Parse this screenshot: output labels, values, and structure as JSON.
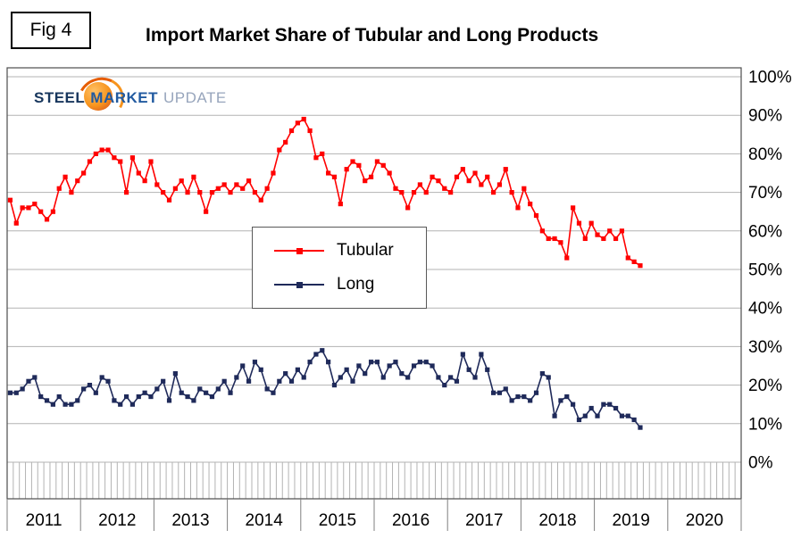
{
  "figure": {
    "fig_label": "Fig 4",
    "title": "Import Market Share of Tubular and Long Products"
  },
  "logo": {
    "part1": "STEEL",
    "part2": "MARKET",
    "part3": "UPDATE",
    "steel_color": "#17365d",
    "market_color": "#215aa0",
    "update_color": "#97a5bc",
    "swirl_color": "#f7941d"
  },
  "legend": {
    "items": [
      {
        "label": "Tubular",
        "color": "#FF0000"
      },
      {
        "label": "Long",
        "color": "#1F2A5A"
      }
    ]
  },
  "chart_data": {
    "type": "line",
    "title": "Import Market Share of Tubular and Long Products",
    "xlabel": "",
    "ylabel": "",
    "ylim": [
      0,
      100
    ],
    "ytick_step": 10,
    "ytick_labels": [
      "0%",
      "10%",
      "20%",
      "30%",
      "40%",
      "50%",
      "60%",
      "70%",
      "80%",
      "90%",
      "100%"
    ],
    "ytick_side": "right",
    "grid": "horizontal",
    "legend_position": "inside-center-left",
    "frequency": "monthly",
    "x_start": "2011-01",
    "x_end": "2019-08",
    "years": [
      "2011",
      "2012",
      "2013",
      "2014",
      "2015",
      "2016",
      "2017",
      "2018",
      "2019",
      "2020"
    ],
    "series": [
      {
        "name": "Tubular",
        "color": "#FF0000",
        "values": [
          68,
          62,
          66,
          66,
          67,
          65,
          63,
          65,
          71,
          74,
          70,
          73,
          75,
          78,
          80,
          81,
          81,
          79,
          78,
          70,
          79,
          75,
          73,
          78,
          72,
          70,
          68,
          71,
          73,
          70,
          74,
          70,
          65,
          70,
          71,
          72,
          70,
          72,
          71,
          73,
          70,
          68,
          71,
          75,
          81,
          83,
          86,
          88,
          89,
          86,
          79,
          80,
          75,
          74,
          67,
          76,
          78,
          77,
          73,
          74,
          78,
          77,
          75,
          71,
          70,
          66,
          70,
          72,
          70,
          74,
          73,
          71,
          70,
          74,
          76,
          73,
          75,
          72,
          74,
          70,
          72,
          76,
          70,
          66,
          71,
          67,
          64,
          60,
          58,
          58,
          57,
          53,
          66,
          62,
          58,
          62,
          59,
          58,
          60,
          58,
          60,
          53,
          52,
          51
        ]
      },
      {
        "name": "Long",
        "color": "#1F2A5A",
        "values": [
          18,
          18,
          19,
          21,
          22,
          17,
          16,
          15,
          17,
          15,
          15,
          16,
          19,
          20,
          18,
          22,
          21,
          16,
          15,
          17,
          15,
          17,
          18,
          17,
          19,
          21,
          16,
          23,
          18,
          17,
          16,
          19,
          18,
          17,
          19,
          21,
          18,
          22,
          25,
          21,
          26,
          24,
          19,
          18,
          21,
          23,
          21,
          24,
          22,
          26,
          28,
          29,
          26,
          20,
          22,
          24,
          21,
          25,
          23,
          26,
          26,
          22,
          25,
          26,
          23,
          22,
          25,
          26,
          26,
          25,
          22,
          20,
          22,
          21,
          28,
          24,
          22,
          28,
          24,
          18,
          18,
          19,
          16,
          17,
          17,
          16,
          18,
          23,
          22,
          12,
          16,
          17,
          15,
          11,
          12,
          14,
          12,
          15,
          15,
          14,
          12,
          12,
          11,
          9
        ]
      }
    ]
  }
}
